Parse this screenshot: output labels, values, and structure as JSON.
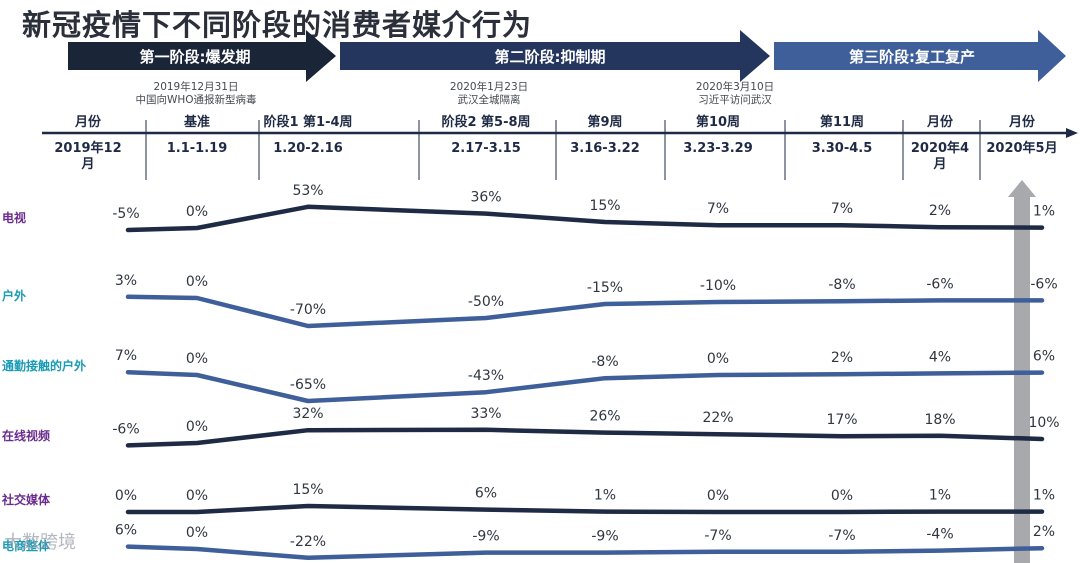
{
  "title": "新冠疫情下不同阶段的消费者媒介行为",
  "phases": [
    {
      "label": "第一阶段:爆发期",
      "color": "#1b2538"
    },
    {
      "label": "第二阶段:抑制期",
      "color": "#24355e"
    },
    {
      "label": "第三阶段:复工复产",
      "color": "#3e5f9a"
    }
  ],
  "events": [
    {
      "date": "2019年12月31日",
      "text": "中国向WHO通报新型病毒"
    },
    {
      "date": "2020年1月23日",
      "text": "武汉全城隔离"
    },
    {
      "date": "2020年3月10日",
      "text": "习近平访问武汉"
    }
  ],
  "header_row": [
    "月份",
    "基准",
    "阶段1 第1-4周",
    "阶段2 第5-8周",
    "第9周",
    "第10周",
    "第11周",
    "月份",
    "月份"
  ],
  "period_row": [
    [
      "2019年12",
      "月"
    ],
    [
      "1.1-1.19"
    ],
    [
      "1.20-2.16"
    ],
    [
      "2.17-3.15"
    ],
    [
      "3.16-3.22"
    ],
    [
      "3.23-3.29"
    ],
    [
      "3.30-4.5"
    ],
    [
      "2020年4",
      "月"
    ],
    [
      "2020年5月"
    ]
  ],
  "watermark": "大数跨境",
  "colors": {
    "dark_line": "#1f2a44",
    "blue_line": "#3e5f9a",
    "highlight_bar": "#a7a9ad"
  },
  "chart_data": {
    "type": "line",
    "title": "新冠疫情下不同阶段的消费者媒介行为",
    "xlabel": "",
    "ylabel": "",
    "categories": [
      "2019年12月",
      "1.1-1.19",
      "1.20-2.16",
      "2.17-3.15",
      "3.16-3.22",
      "3.23-3.29",
      "3.30-4.5",
      "2020年4月",
      "2020年5月"
    ],
    "series": [
      {
        "name": "电视",
        "label_color": "#6a2c8f",
        "line_color": "#1f2a44",
        "values": [
          -5,
          0,
          53,
          36,
          15,
          7,
          7,
          2,
          1
        ],
        "labels": [
          "-5%",
          "0%",
          "53%",
          "36%",
          "15%",
          "7%",
          "7%",
          "2%",
          "1%"
        ]
      },
      {
        "name": "户外",
        "label_color": "#1a9bb5",
        "line_color": "#3e5f9a",
        "values": [
          3,
          0,
          -70,
          -50,
          -15,
          -10,
          -8,
          -6,
          -6
        ],
        "labels": [
          "3%",
          "0%",
          "-70%",
          "-50%",
          "-15%",
          "-10%",
          "-8%",
          "-6%",
          "-6%"
        ]
      },
      {
        "name": "通勤接触的户外",
        "label_color": "#1a9bb5",
        "line_color": "#3e5f9a",
        "values": [
          7,
          0,
          -65,
          -43,
          -8,
          0,
          2,
          4,
          6
        ],
        "labels": [
          "7%",
          "0%",
          "-65%",
          "-43%",
          "-8%",
          "0%",
          "2%",
          "4%",
          "6%"
        ]
      },
      {
        "name": "在线视频",
        "label_color": "#6a2c8f",
        "line_color": "#1f2a44",
        "values": [
          -6,
          0,
          32,
          33,
          26,
          22,
          17,
          18,
          10
        ],
        "labels": [
          "-6%",
          "0%",
          "32%",
          "33%",
          "26%",
          "22%",
          "17%",
          "18%",
          "10%"
        ]
      },
      {
        "name": "社交媒体",
        "label_color": "#6a2c8f",
        "line_color": "#1f2a44",
        "values": [
          0,
          0,
          15,
          6,
          1,
          0,
          0,
          1,
          1
        ],
        "labels": [
          "0%",
          "0%",
          "15%",
          "6%",
          "1%",
          "0%",
          "0%",
          "1%",
          "1%"
        ]
      },
      {
        "name": "电商整体",
        "label_color": "#1a9bb5",
        "line_color": "#3e5f9a",
        "values": [
          6,
          0,
          -22,
          -9,
          -9,
          -7,
          -7,
          -4,
          2
        ],
        "labels": [
          "6%",
          "0%",
          "-22%",
          "-9%",
          "-9%",
          "-7%",
          "-7%",
          "-4%",
          "2%"
        ]
      }
    ]
  }
}
